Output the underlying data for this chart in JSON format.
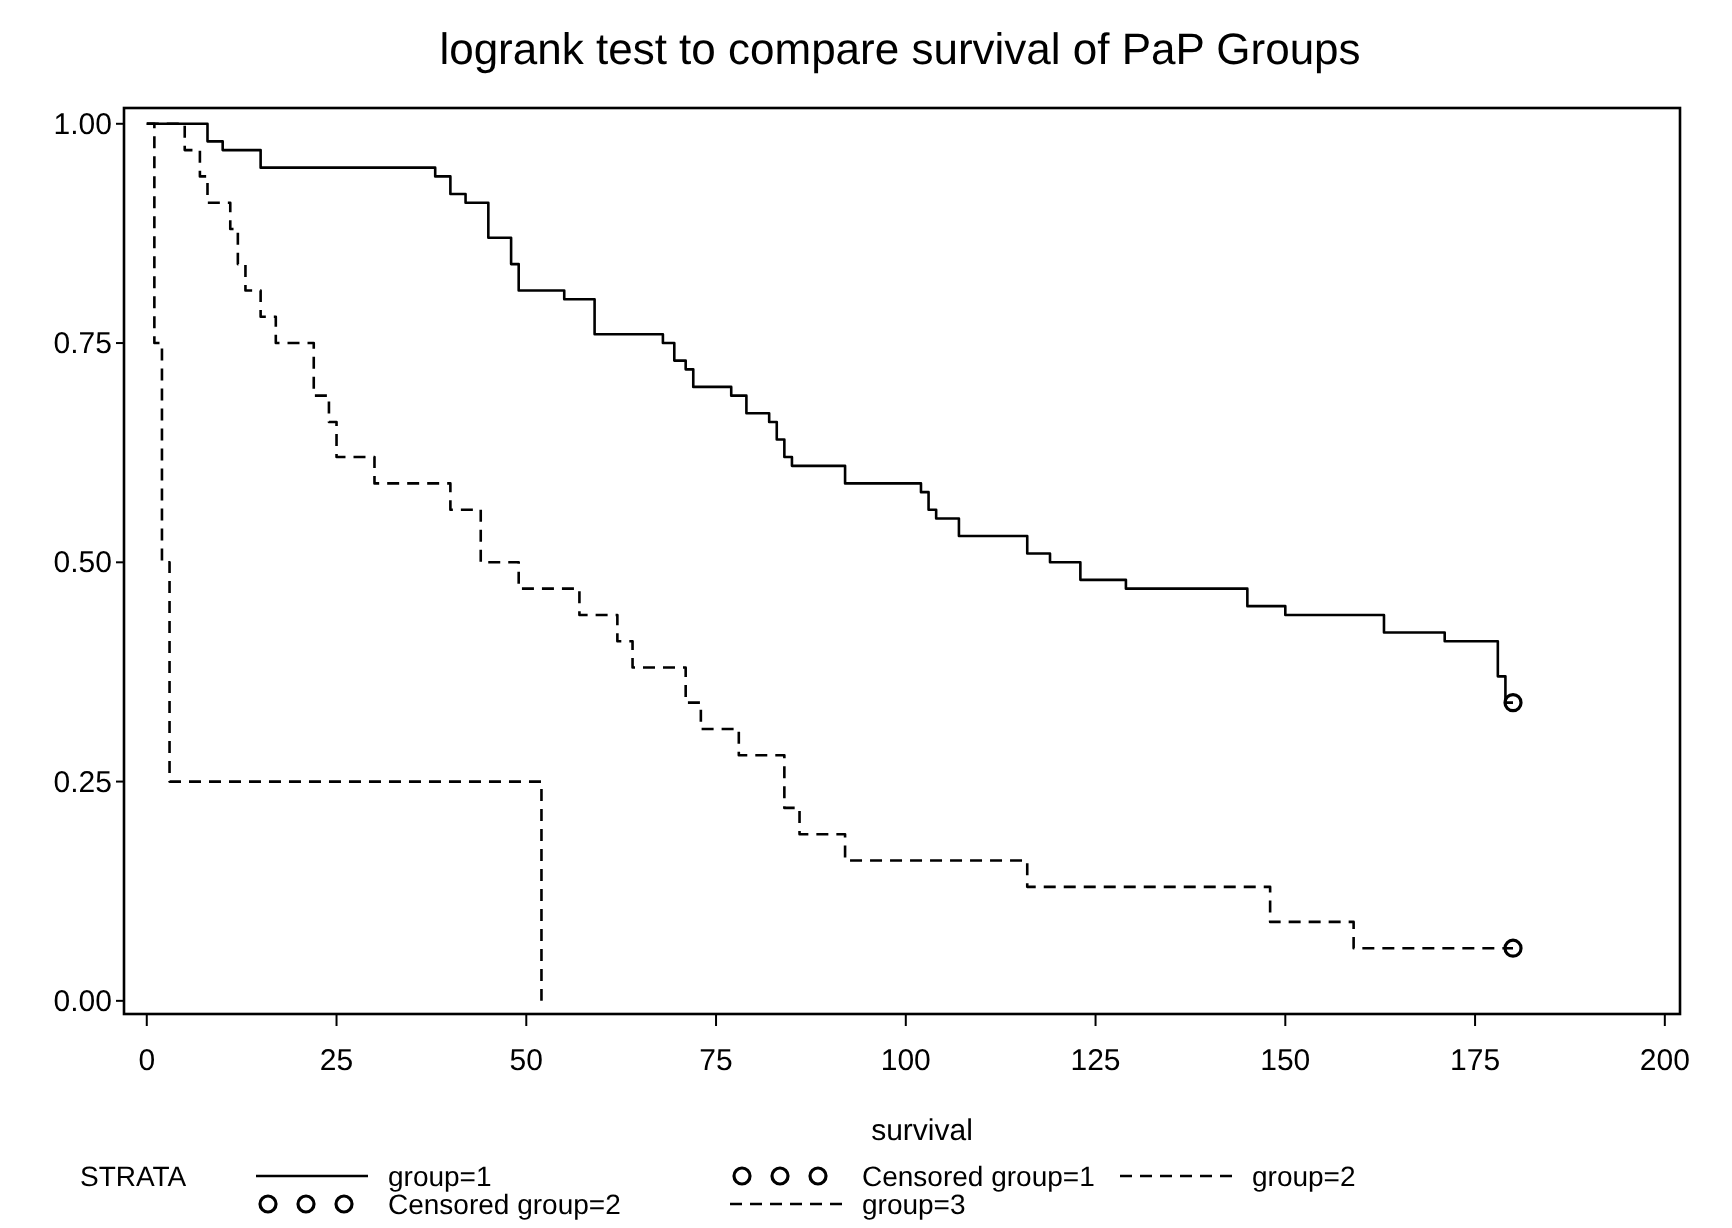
{
  "chart_data": {
    "type": "step",
    "title": "logrank test to compare survival of PaP Groups",
    "xlabel": "survival",
    "legend_title": "STRATA",
    "legend": "bottom",
    "grid": false,
    "xlim": [
      -3,
      202
    ],
    "xticks": [
      0,
      25,
      50,
      75,
      100,
      125,
      150,
      175,
      200
    ],
    "ylim": [
      -0.015,
      1.018
    ],
    "yticks": [
      {
        "value": 0,
        "label": "0.00"
      },
      {
        "value": 0.25,
        "label": "0.25"
      },
      {
        "value": 0.5,
        "label": "0.50"
      },
      {
        "value": 0.75,
        "label": "0.75"
      },
      {
        "value": 1,
        "label": "1.00"
      }
    ],
    "series": [
      {
        "name": "group=1",
        "color": "#000000",
        "line_style": "solid",
        "x": [
          0,
          8,
          10,
          15,
          38,
          40,
          42,
          45,
          48,
          49,
          55,
          59,
          68,
          69.5,
          71,
          72,
          77,
          79,
          82,
          83,
          84,
          85,
          92,
          102,
          103,
          104,
          107,
          116,
          119,
          123,
          129,
          145,
          150,
          163,
          171,
          178,
          179,
          180
        ],
        "values": [
          1,
          0.98,
          0.97,
          0.95,
          0.94,
          0.92,
          0.91,
          0.87,
          0.84,
          0.81,
          0.8,
          0.76,
          0.75,
          0.73,
          0.72,
          0.7,
          0.69,
          0.67,
          0.66,
          0.64,
          0.62,
          0.61,
          0.59,
          0.58,
          0.56,
          0.55,
          0.53,
          0.51,
          0.5,
          0.48,
          0.47,
          0.45,
          0.44,
          0.42,
          0.41,
          0.37,
          0.34,
          0.34
        ]
      },
      {
        "name": "Censored group=1",
        "type": "scatter",
        "marker": "circle",
        "color": "#000000",
        "x": [
          180
        ],
        "values": [
          0.34
        ]
      },
      {
        "name": "group=2",
        "color": "#000000",
        "line_style": "dashed",
        "x": [
          0,
          5,
          7,
          8,
          11,
          12,
          13,
          15,
          17,
          22,
          24,
          25,
          30,
          40,
          44,
          49,
          57,
          62,
          64,
          71,
          73,
          78,
          84,
          86,
          92,
          116,
          148,
          159,
          180
        ],
        "values": [
          1,
          0.97,
          0.94,
          0.91,
          0.88,
          0.84,
          0.81,
          0.78,
          0.75,
          0.69,
          0.66,
          0.62,
          0.59,
          0.56,
          0.5,
          0.47,
          0.44,
          0.41,
          0.38,
          0.34,
          0.31,
          0.28,
          0.22,
          0.19,
          0.16,
          0.13,
          0.09,
          0.06,
          0.06
        ]
      },
      {
        "name": "Censored group=2",
        "type": "scatter",
        "marker": "circle",
        "color": "#000000",
        "x": [
          180
        ],
        "values": [
          0.06
        ]
      },
      {
        "name": "group=3",
        "color": "#000000",
        "line_style": "dashed",
        "x": [
          0,
          1,
          2,
          3,
          52
        ],
        "values": [
          1,
          0.75,
          0.5,
          0.25,
          0
        ]
      }
    ]
  }
}
